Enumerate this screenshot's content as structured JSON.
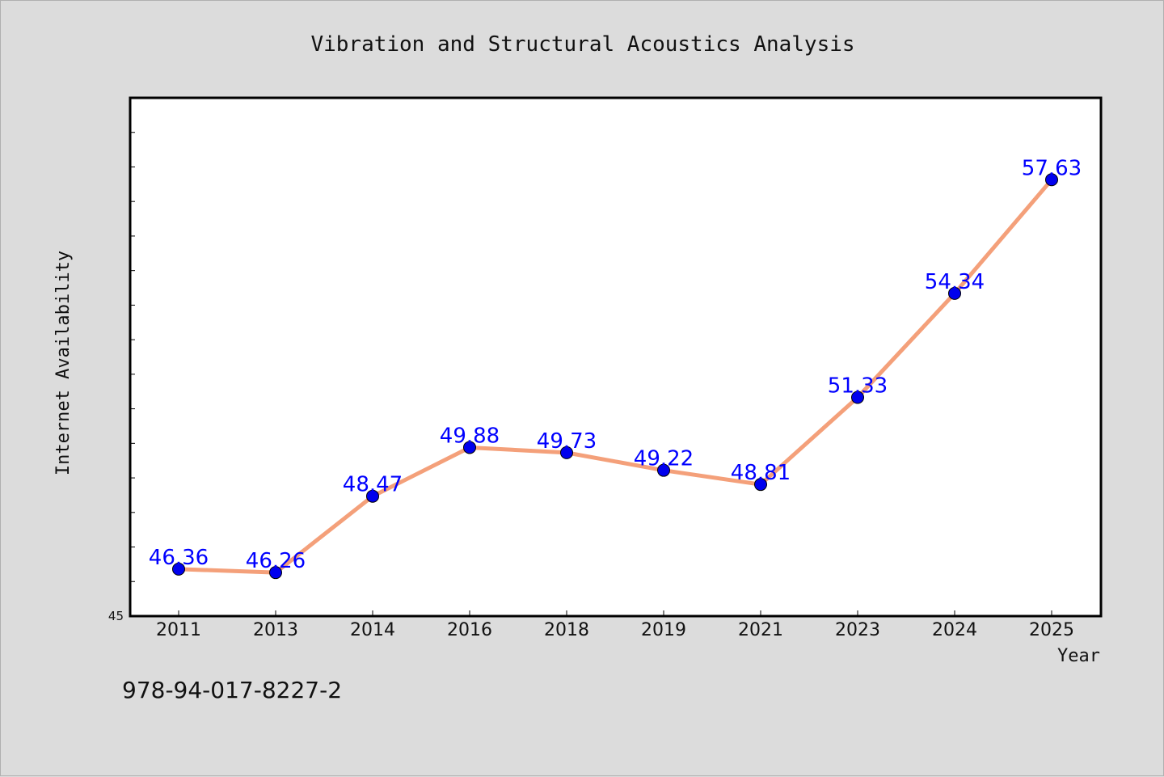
{
  "chart_data": {
    "type": "line",
    "title": "Vibration and Structural Acoustics Analysis",
    "xlabel": "Year",
    "ylabel": "Internet Availability",
    "categories": [
      "2011",
      "2013",
      "2014",
      "2016",
      "2018",
      "2019",
      "2021",
      "2023",
      "2024",
      "2025"
    ],
    "series": [
      {
        "values": [
          46.36,
          46.26,
          48.47,
          49.88,
          49.73,
          49.22,
          48.81,
          51.33,
          54.34,
          57.63
        ],
        "labels": [
          "46.36",
          "46.26",
          "48.47",
          "49.88",
          "49.73",
          "49.22",
          "48.81",
          "51.33",
          "54.34",
          "57.63"
        ]
      }
    ],
    "ylim": [
      45,
      60
    ],
    "y_tick_labels": [
      "45"
    ],
    "y_minor_step": 1,
    "grid": false,
    "legend": "none",
    "colors": {
      "line": "#f4a07a",
      "marker": "#0000ee",
      "label": "#0000ff"
    }
  },
  "footer": {
    "isbn": "978-94-017-8227-2"
  }
}
